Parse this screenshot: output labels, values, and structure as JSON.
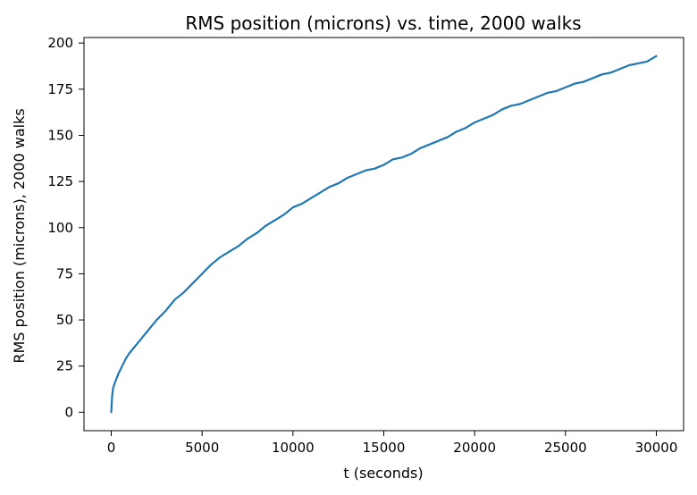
{
  "chart_data": {
    "type": "line",
    "title": "RMS position (microns) vs. time, 2000 walks",
    "xlabel": "t (seconds)",
    "ylabel": "RMS position (microns), 2000 walks",
    "xlim": [
      -1500,
      31500
    ],
    "ylim": [
      -10,
      203
    ],
    "xticks": [
      0,
      5000,
      10000,
      15000,
      20000,
      25000,
      30000
    ],
    "xtick_labels": [
      "0",
      "5000",
      "10000",
      "15000",
      "20000",
      "25000",
      "30000"
    ],
    "yticks": [
      0,
      25,
      50,
      75,
      100,
      125,
      150,
      175,
      200
    ],
    "ytick_labels": [
      "0",
      "25",
      "50",
      "75",
      "100",
      "125",
      "150",
      "175",
      "200"
    ],
    "grid": false,
    "series": [
      {
        "color": "#1f77b4",
        "x": [
          0,
          50,
          100,
          200,
          400,
          600,
          800,
          1000,
          1500,
          2000,
          2500,
          3000,
          3500,
          4000,
          4500,
          5000,
          5500,
          6000,
          6500,
          7000,
          7500,
          8000,
          8500,
          9000,
          9500,
          10000,
          10500,
          11000,
          11500,
          12000,
          12500,
          13000,
          13500,
          14000,
          14500,
          15000,
          15500,
          16000,
          16500,
          17000,
          17500,
          18000,
          18500,
          19000,
          19500,
          20000,
          20500,
          21000,
          21500,
          22000,
          22500,
          23000,
          23500,
          24000,
          24500,
          25000,
          25500,
          26000,
          26500,
          27000,
          27500,
          28000,
          28500,
          29000,
          29500,
          30000
        ],
        "y": [
          0,
          9,
          13,
          16,
          21,
          25,
          29,
          32,
          38,
          44,
          50,
          55,
          61,
          65,
          70,
          75,
          80,
          84,
          87,
          90,
          94,
          97,
          101,
          104,
          107,
          111,
          113,
          116,
          119,
          122,
          124,
          127,
          129,
          131,
          132,
          134,
          137,
          138,
          140,
          143,
          145,
          147,
          149,
          152,
          154,
          157,
          159,
          161,
          164,
          166,
          167,
          169,
          171,
          173,
          174,
          176,
          178,
          179,
          181,
          183,
          184,
          186,
          188,
          189,
          190,
          193
        ]
      }
    ]
  }
}
